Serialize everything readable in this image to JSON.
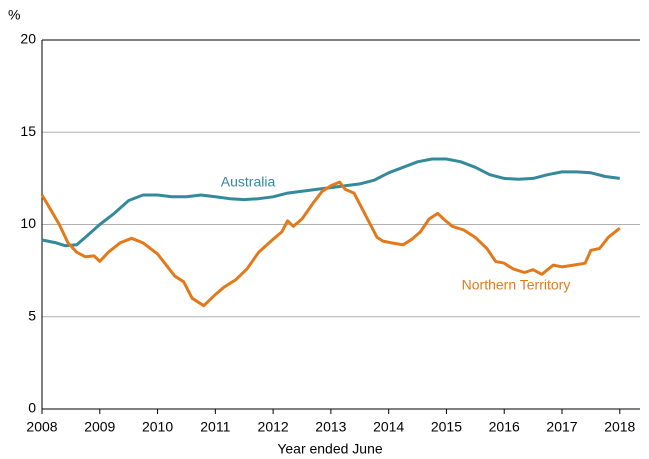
{
  "chart_data": {
    "type": "line",
    "y_unit": "%",
    "x_label": "Year ended June",
    "xlim": [
      2008,
      2018.35
    ],
    "xticks": [
      2008,
      2009,
      2010,
      2011,
      2012,
      2013,
      2014,
      2015,
      2016,
      2017,
      2018
    ],
    "ylim": [
      0,
      20
    ],
    "yticks": [
      0,
      5,
      10,
      15,
      20
    ],
    "grid": true,
    "series": [
      {
        "name": "Australia",
        "color": "#35899c",
        "x": [
          2008.0,
          2008.25,
          2008.4,
          2008.6,
          2008.75,
          2009.0,
          2009.25,
          2009.5,
          2009.75,
          2010.0,
          2010.25,
          2010.5,
          2010.75,
          2011.0,
          2011.25,
          2011.5,
          2011.75,
          2012.0,
          2012.25,
          2012.5,
          2012.75,
          2013.0,
          2013.25,
          2013.5,
          2013.75,
          2014.0,
          2014.25,
          2014.5,
          2014.75,
          2015.0,
          2015.25,
          2015.5,
          2015.75,
          2016.0,
          2016.25,
          2016.5,
          2016.75,
          2017.0,
          2017.25,
          2017.5,
          2017.75,
          2018.0
        ],
        "values": [
          9.16,
          9.0,
          8.85,
          8.9,
          9.3,
          10.0,
          10.6,
          11.3,
          11.6,
          11.6,
          11.5,
          11.5,
          11.6,
          11.5,
          11.4,
          11.35,
          11.4,
          11.5,
          11.7,
          11.8,
          11.9,
          12.0,
          12.1,
          12.2,
          12.4,
          12.8,
          13.1,
          13.4,
          13.55,
          13.55,
          13.4,
          13.1,
          12.7,
          12.5,
          12.45,
          12.5,
          12.7,
          12.85,
          12.85,
          12.8,
          12.6,
          12.5
        ]
      },
      {
        "name": "Northern Territory",
        "color": "#e27a1b",
        "x": [
          2008.0,
          2008.15,
          2008.3,
          2008.45,
          2008.6,
          2008.75,
          2008.9,
          2009.0,
          2009.15,
          2009.35,
          2009.55,
          2009.75,
          2010.0,
          2010.15,
          2010.3,
          2010.45,
          2010.6,
          2010.8,
          2011.0,
          2011.15,
          2011.35,
          2011.55,
          2011.75,
          2012.0,
          2012.15,
          2012.25,
          2012.35,
          2012.5,
          2012.7,
          2012.85,
          2013.0,
          2013.15,
          2013.25,
          2013.4,
          2013.6,
          2013.8,
          2013.9,
          2014.05,
          2014.25,
          2014.4,
          2014.55,
          2014.7,
          2014.85,
          2014.95,
          2015.1,
          2015.3,
          2015.5,
          2015.7,
          2015.85,
          2016.0,
          2016.15,
          2016.35,
          2016.5,
          2016.65,
          2016.85,
          2017.0,
          2017.2,
          2017.4,
          2017.5,
          2017.65,
          2017.8,
          2018.0
        ],
        "values": [
          11.6,
          10.8,
          10.0,
          9.0,
          8.5,
          8.25,
          8.3,
          8.0,
          8.5,
          9.0,
          9.25,
          9.0,
          8.4,
          7.8,
          7.2,
          6.9,
          6.0,
          5.6,
          6.2,
          6.6,
          7.0,
          7.6,
          8.5,
          9.2,
          9.6,
          10.2,
          9.9,
          10.3,
          11.2,
          11.8,
          12.1,
          12.3,
          11.9,
          11.7,
          10.5,
          9.3,
          9.1,
          9.0,
          8.9,
          9.2,
          9.6,
          10.3,
          10.6,
          10.3,
          9.9,
          9.7,
          9.3,
          8.7,
          8.0,
          7.9,
          7.6,
          7.4,
          7.55,
          7.3,
          7.8,
          7.7,
          7.8,
          7.9,
          8.6,
          8.7,
          9.3,
          9.8
        ]
      }
    ]
  }
}
